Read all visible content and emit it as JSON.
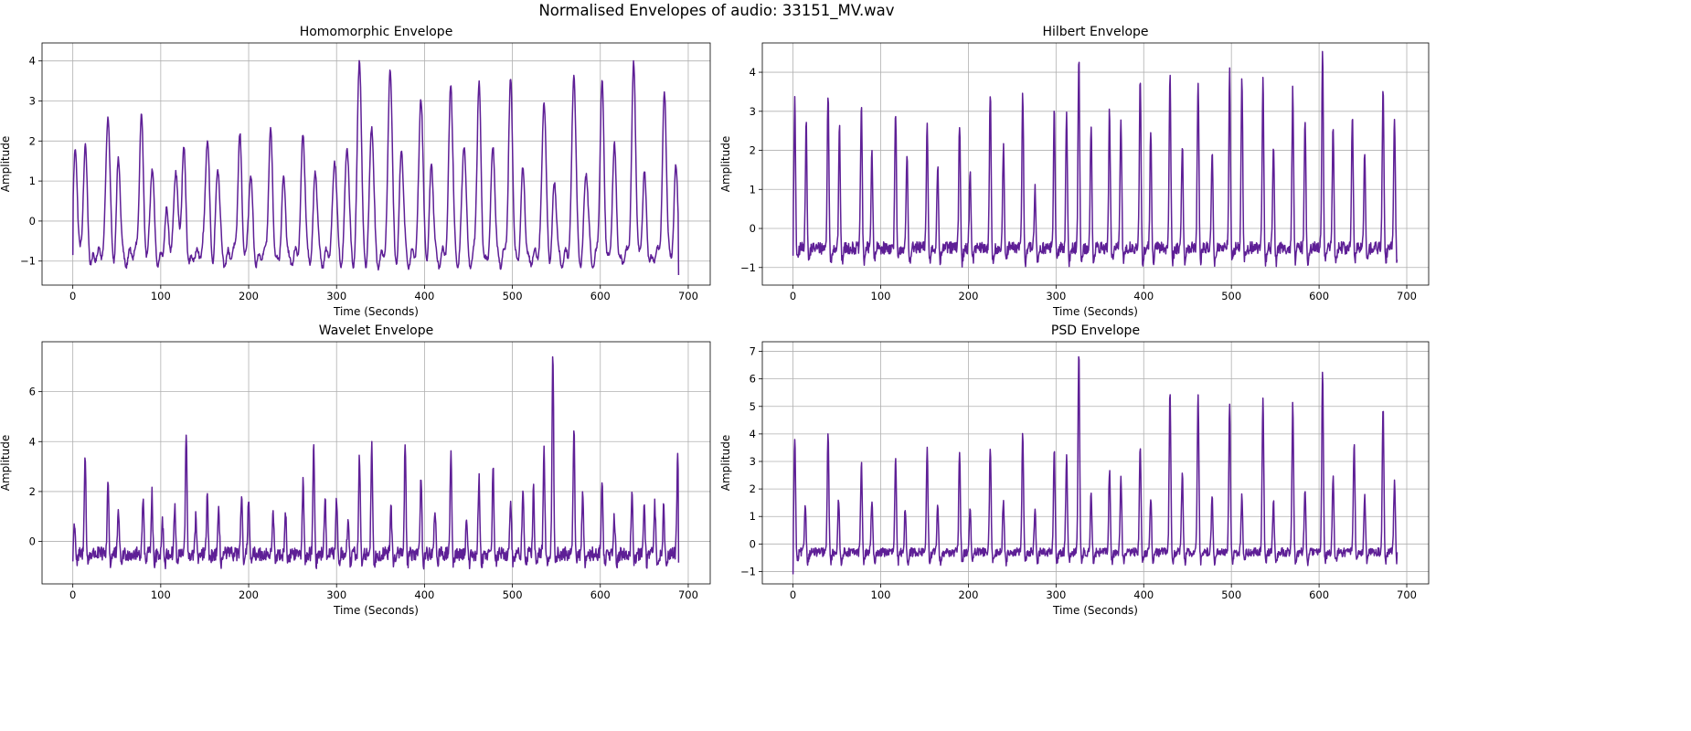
{
  "figure": {
    "suptitle": "Normalised Envelopes of audio: 33151_MV.wav"
  },
  "style": {
    "line_color": "#5e1f96",
    "grid_color": "#b0b0b0",
    "axis_color": "#000000"
  },
  "chart_data": [
    {
      "type": "line",
      "title": "Homomorphic Envelope",
      "xlabel": "Time (Seconds)",
      "ylabel": "Amplitude",
      "xlim": [
        -35,
        725
      ],
      "ylim": [
        -1.6,
        4.45
      ],
      "xticks": [
        0,
        100,
        200,
        300,
        400,
        500,
        600,
        700
      ],
      "yticks": [
        -1,
        0,
        1,
        2,
        3,
        4
      ],
      "grid": true,
      "baseline": -0.8,
      "spike_shape": "round",
      "start": -0.85,
      "end": -1.35,
      "x_end": 689,
      "peaks": [
        [
          3,
          1.75
        ],
        [
          14,
          1.95
        ],
        [
          40,
          2.7
        ],
        [
          52,
          1.55
        ],
        [
          78,
          2.55
        ],
        [
          90,
          1.4
        ],
        [
          107,
          0.2
        ],
        [
          117,
          1.5
        ],
        [
          126,
          2.0
        ],
        [
          153,
          2.1
        ],
        [
          165,
          1.45
        ],
        [
          190,
          2.05
        ],
        [
          202,
          1.2
        ],
        [
          225,
          2.2
        ],
        [
          240,
          1.0
        ],
        [
          262,
          2.15
        ],
        [
          276,
          1.25
        ],
        [
          298,
          1.6
        ],
        [
          312,
          1.95
        ],
        [
          326,
          4.15
        ],
        [
          340,
          2.5
        ],
        [
          361,
          3.95
        ],
        [
          374,
          1.85
        ],
        [
          396,
          3.2
        ],
        [
          408,
          1.45
        ],
        [
          430,
          3.45
        ],
        [
          445,
          2.0
        ],
        [
          462,
          3.35
        ],
        [
          478,
          1.85
        ],
        [
          498,
          3.45
        ],
        [
          512,
          1.25
        ],
        [
          536,
          3.1
        ],
        [
          548,
          1.0
        ],
        [
          570,
          3.75
        ],
        [
          584,
          1.3
        ],
        [
          602,
          3.35
        ],
        [
          616,
          1.8
        ],
        [
          638,
          3.9
        ],
        [
          650,
          1.2
        ],
        [
          673,
          3.15
        ],
        [
          686,
          1.3
        ]
      ]
    },
    {
      "type": "line",
      "title": "Hilbert Envelope",
      "xlabel": "Time (Seconds)",
      "ylabel": "Amplitude",
      "xlim": [
        -35,
        725
      ],
      "ylim": [
        -1.45,
        4.75
      ],
      "xticks": [
        0,
        100,
        200,
        300,
        400,
        500,
        600,
        700
      ],
      "yticks": [
        -1,
        0,
        1,
        2,
        3,
        4
      ],
      "grid": true,
      "baseline": -0.5,
      "spike_shape": "sharp",
      "start": -0.7,
      "end": -0.8,
      "x_end": 689,
      "peaks": [
        [
          2,
          3.25
        ],
        [
          15,
          2.7
        ],
        [
          40,
          3.5
        ],
        [
          53,
          2.55
        ],
        [
          78,
          3.2
        ],
        [
          90,
          2.05
        ],
        [
          117,
          3.0
        ],
        [
          130,
          1.9
        ],
        [
          153,
          2.7
        ],
        [
          165,
          1.6
        ],
        [
          190,
          2.75
        ],
        [
          202,
          1.55
        ],
        [
          225,
          3.5
        ],
        [
          240,
          2.1
        ],
        [
          262,
          3.5
        ],
        [
          276,
          1.0
        ],
        [
          298,
          3.05
        ],
        [
          312,
          2.85
        ],
        [
          326,
          4.4
        ],
        [
          340,
          2.7
        ],
        [
          361,
          3.05
        ],
        [
          374,
          2.9
        ],
        [
          396,
          3.8
        ],
        [
          408,
          2.45
        ],
        [
          430,
          4.05
        ],
        [
          444,
          2.15
        ],
        [
          462,
          3.85
        ],
        [
          478,
          2.0
        ],
        [
          498,
          4.0
        ],
        [
          512,
          3.95
        ],
        [
          536,
          3.8
        ],
        [
          548,
          2.2
        ],
        [
          570,
          3.55
        ],
        [
          584,
          2.75
        ],
        [
          604,
          4.5
        ],
        [
          616,
          2.6
        ],
        [
          638,
          3.0
        ],
        [
          652,
          2.05
        ],
        [
          673,
          3.65
        ],
        [
          686,
          2.95
        ]
      ]
    },
    {
      "type": "line",
      "title": "Wavelet Envelope",
      "xlabel": "Time (Seconds)",
      "ylabel": "Amplitude",
      "xlim": [
        -35,
        725
      ],
      "ylim": [
        -1.7,
        8.0
      ],
      "xticks": [
        0,
        100,
        200,
        300,
        400,
        500,
        600,
        700
      ],
      "yticks": [
        0,
        2,
        4,
        6
      ],
      "grid": true,
      "baseline": -0.5,
      "spike_shape": "sharp",
      "start": -0.8,
      "end": -0.85,
      "x_end": 689,
      "peaks": [
        [
          2,
          0.8
        ],
        [
          14,
          3.6
        ],
        [
          40,
          2.5
        ],
        [
          52,
          1.3
        ],
        [
          80,
          1.9
        ],
        [
          90,
          1.95
        ],
        [
          102,
          0.9
        ],
        [
          116,
          1.4
        ],
        [
          129,
          4.45
        ],
        [
          140,
          1.0
        ],
        [
          153,
          1.8
        ],
        [
          166,
          1.2
        ],
        [
          192,
          1.75
        ],
        [
          200,
          1.9
        ],
        [
          228,
          1.2
        ],
        [
          242,
          1.2
        ],
        [
          262,
          2.5
        ],
        [
          274,
          4.1
        ],
        [
          287,
          1.7
        ],
        [
          300,
          1.8
        ],
        [
          313,
          0.8
        ],
        [
          326,
          3.4
        ],
        [
          340,
          3.85
        ],
        [
          362,
          1.3
        ],
        [
          378,
          3.85
        ],
        [
          396,
          2.8
        ],
        [
          412,
          1.4
        ],
        [
          430,
          3.55
        ],
        [
          448,
          1.0
        ],
        [
          462,
          2.6
        ],
        [
          478,
          3.05
        ],
        [
          498,
          1.6
        ],
        [
          512,
          2.0
        ],
        [
          524,
          2.1
        ],
        [
          536,
          3.6
        ],
        [
          546,
          7.6
        ],
        [
          570,
          4.65
        ],
        [
          580,
          2.0
        ],
        [
          602,
          2.5
        ],
        [
          616,
          1.0
        ],
        [
          636,
          2.1
        ],
        [
          650,
          1.3
        ],
        [
          662,
          1.5
        ],
        [
          672,
          1.3
        ],
        [
          688,
          3.45
        ]
      ]
    },
    {
      "type": "line",
      "title": "PSD Envelope",
      "xlabel": "Time (Seconds)",
      "ylabel": "Amplitude",
      "xlim": [
        -35,
        725
      ],
      "ylim": [
        -1.45,
        7.35
      ],
      "xticks": [
        0,
        100,
        200,
        300,
        400,
        500,
        600,
        700
      ],
      "yticks": [
        -1,
        0,
        1,
        2,
        3,
        4,
        5,
        6,
        7
      ],
      "grid": true,
      "baseline": -0.3,
      "spike_shape": "sharp",
      "start": -1.1,
      "end": -0.3,
      "x_end": 689,
      "peaks": [
        [
          2,
          3.9
        ],
        [
          14,
          1.45
        ],
        [
          40,
          4.05
        ],
        [
          52,
          1.55
        ],
        [
          78,
          2.95
        ],
        [
          90,
          1.55
        ],
        [
          117,
          3.05
        ],
        [
          128,
          1.3
        ],
        [
          153,
          3.4
        ],
        [
          165,
          1.35
        ],
        [
          190,
          3.3
        ],
        [
          202,
          1.35
        ],
        [
          225,
          3.45
        ],
        [
          240,
          1.6
        ],
        [
          262,
          4.0
        ],
        [
          276,
          1.3
        ],
        [
          298,
          3.4
        ],
        [
          312,
          3.25
        ],
        [
          326,
          7.05
        ],
        [
          340,
          1.9
        ],
        [
          361,
          2.7
        ],
        [
          374,
          2.45
        ],
        [
          396,
          3.55
        ],
        [
          408,
          1.75
        ],
        [
          430,
          5.6
        ],
        [
          444,
          2.6
        ],
        [
          462,
          5.55
        ],
        [
          478,
          1.75
        ],
        [
          498,
          5.2
        ],
        [
          512,
          1.75
        ],
        [
          536,
          5.45
        ],
        [
          548,
          1.55
        ],
        [
          570,
          5.2
        ],
        [
          584,
          2.1
        ],
        [
          604,
          6.35
        ],
        [
          616,
          2.5
        ],
        [
          640,
          3.7
        ],
        [
          652,
          1.75
        ],
        [
          673,
          4.95
        ],
        [
          686,
          2.2
        ]
      ]
    }
  ]
}
